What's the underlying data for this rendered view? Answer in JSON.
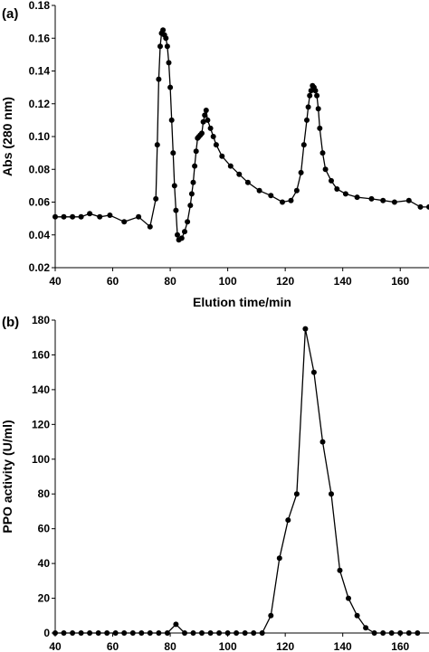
{
  "chart_data": [
    {
      "panel_label": "(a)",
      "type": "line",
      "xlabel": "Elution time/min",
      "ylabel": "Abs (280 nm)",
      "xlim": [
        40,
        170
      ],
      "ylim": [
        0.02,
        0.18
      ],
      "x_ticks": [
        40,
        60,
        80,
        100,
        120,
        140,
        160
      ],
      "x_tick_labels": [
        "40",
        "60",
        "80",
        "100",
        "120",
        "140",
        "160"
      ],
      "y_ticks": [
        0.02,
        0.04,
        0.06,
        0.08,
        0.1,
        0.12,
        0.14,
        0.16,
        0.18
      ],
      "y_tick_labels": [
        "0.02",
        "0.04",
        "0.06",
        "0.08",
        "0.10",
        "0.12",
        "0.14",
        "0.16",
        "0.18"
      ],
      "grid": false,
      "markers": true,
      "series": [
        {
          "x": [
            40,
            43,
            46,
            49,
            52,
            55.5,
            59,
            64,
            69,
            73,
            75,
            75.5,
            76,
            76.5,
            77,
            77.5,
            78,
            78.5,
            79,
            79.5,
            80,
            80.5,
            81,
            81.5,
            82,
            82.5,
            83,
            84,
            85,
            86,
            87,
            87.5,
            88,
            88.5,
            89,
            89.5,
            90,
            90.5,
            91,
            91.5,
            92,
            92.5,
            93,
            94,
            95,
            96,
            98,
            101,
            104,
            107,
            111,
            115,
            119,
            122,
            124,
            125.5,
            126.5,
            127.5,
            128,
            128.5,
            129,
            129.5,
            130,
            130.5,
            131,
            131.5,
            132,
            133,
            134,
            136,
            138,
            141,
            145,
            150,
            154,
            158,
            163,
            167,
            170
          ],
          "y": [
            0.051,
            0.051,
            0.051,
            0.051,
            0.053,
            0.051,
            0.052,
            0.048,
            0.051,
            0.045,
            0.062,
            0.095,
            0.135,
            0.155,
            0.163,
            0.165,
            0.162,
            0.16,
            0.155,
            0.145,
            0.13,
            0.11,
            0.09,
            0.07,
            0.055,
            0.04,
            0.037,
            0.038,
            0.042,
            0.048,
            0.058,
            0.065,
            0.072,
            0.082,
            0.091,
            0.099,
            0.1,
            0.101,
            0.102,
            0.109,
            0.113,
            0.116,
            0.11,
            0.105,
            0.1,
            0.095,
            0.088,
            0.082,
            0.077,
            0.072,
            0.067,
            0.064,
            0.06,
            0.061,
            0.067,
            0.078,
            0.095,
            0.11,
            0.118,
            0.125,
            0.128,
            0.131,
            0.13,
            0.128,
            0.125,
            0.117,
            0.105,
            0.09,
            0.08,
            0.073,
            0.068,
            0.065,
            0.063,
            0.062,
            0.061,
            0.06,
            0.061,
            0.057,
            0.057
          ]
        }
      ]
    },
    {
      "panel_label": "(b)",
      "type": "line",
      "xlabel": "Elution time/min",
      "ylabel": "PPO activity (U/ml)",
      "xlim": [
        40,
        170
      ],
      "ylim": [
        0,
        180
      ],
      "x_ticks": [
        40,
        60,
        80,
        100,
        120,
        140,
        160
      ],
      "x_tick_labels": [
        "40",
        "60",
        "80",
        "100",
        "120",
        "140",
        "160"
      ],
      "y_ticks": [
        0,
        20,
        40,
        60,
        80,
        100,
        120,
        140,
        160,
        180
      ],
      "y_tick_labels": [
        "0",
        "20",
        "40",
        "60",
        "80",
        "100",
        "120",
        "140",
        "160",
        "180"
      ],
      "grid": false,
      "markers": true,
      "series": [
        {
          "x": [
            40,
            43,
            46,
            49,
            52,
            55,
            58,
            61,
            64,
            67,
            70,
            73,
            76,
            79,
            82,
            85,
            88,
            91,
            94,
            97,
            100,
            103,
            106,
            109,
            112,
            115,
            118,
            121,
            124,
            127,
            130,
            133,
            136,
            139,
            142,
            145,
            148,
            151,
            154,
            157,
            160,
            163,
            166
          ],
          "y": [
            0,
            0,
            0,
            0,
            0,
            0,
            0,
            0,
            0,
            0,
            0,
            0,
            0,
            0,
            5,
            0,
            0,
            0,
            0,
            0,
            0,
            0,
            0,
            0,
            0,
            10,
            43,
            65,
            80,
            175,
            150,
            110,
            80,
            36,
            20,
            10,
            3,
            0,
            0,
            0,
            0,
            0,
            0
          ]
        }
      ]
    }
  ]
}
